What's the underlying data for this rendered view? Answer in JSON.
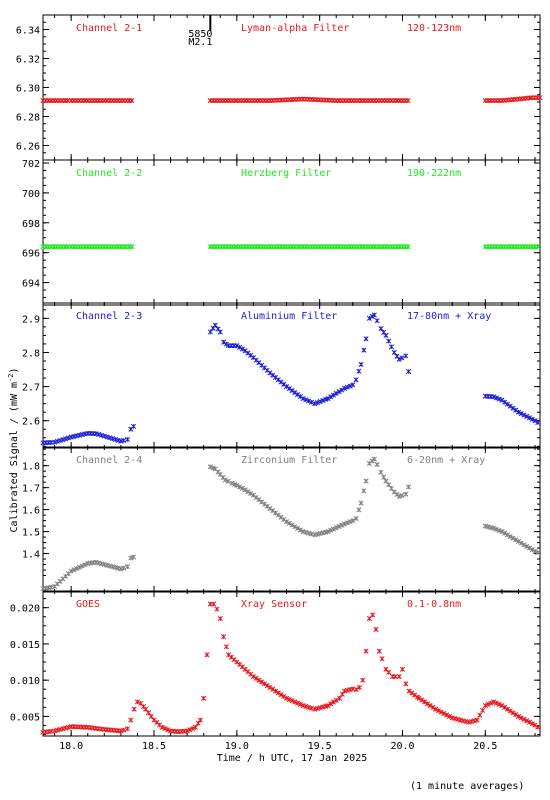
{
  "chart_data": {
    "type": "scatter",
    "xlabel": "Time / h UTC, 17 Jan 2025",
    "ylabel": "Calibrated Signal / (mW m",
    "ylabel_sup": "-2",
    "ylabel_end": ")",
    "xlim": [
      17.83,
      20.83
    ],
    "x_ticks": [
      "18.0",
      "18.5",
      "19.0",
      "19.5",
      "20.0",
      "20.5"
    ],
    "x_tick_values": [
      18.0,
      18.5,
      19.0,
      19.5,
      20.0,
      20.5
    ],
    "footnote": "(1 minute averages)",
    "event_marker": {
      "x": 18.84,
      "line1": "5850",
      "line2": "M2.1"
    },
    "panels": [
      {
        "channel": "Channel 2-1",
        "filter": "Lyman-alpha Filter",
        "band": "120-123nm",
        "color": "#e8191e",
        "ylim": [
          6.25,
          6.35
        ],
        "y_ticks": [
          "6.26",
          "6.28",
          "6.30",
          "6.32",
          "6.34"
        ],
        "y_tick_values": [
          6.26,
          6.28,
          6.3,
          6.32,
          6.34
        ],
        "segments": [
          {
            "x": [
              17.83,
              18.0,
              18.2,
              18.38
            ],
            "y": [
              6.291,
              6.291,
              6.291,
              6.291
            ]
          },
          {
            "x": [
              18.84,
              19.0,
              19.2,
              19.4,
              19.6,
              19.8,
              20.04
            ],
            "y": [
              6.291,
              6.291,
              6.291,
              6.292,
              6.291,
              6.291,
              6.291
            ]
          },
          {
            "x": [
              20.5,
              20.6,
              20.7,
              20.78,
              20.83
            ],
            "y": [
              6.291,
              6.291,
              6.292,
              6.293,
              6.293
            ]
          }
        ]
      },
      {
        "channel": "Channel 2-2",
        "filter": "Herzberg Filter",
        "band": "190-222nm",
        "color": "#1ee81e",
        "ylim": [
          692.5,
          702.2
        ],
        "y_ticks": [
          "694",
          "696",
          "698",
          "700",
          "702"
        ],
        "y_tick_values": [
          694,
          696,
          698,
          700,
          702
        ],
        "segments": [
          {
            "x": [
              17.83,
              18.0,
              18.2,
              18.38
            ],
            "y": [
              696.4,
              696.4,
              696.4,
              696.4
            ]
          },
          {
            "x": [
              18.84,
              19.0,
              19.2,
              19.4,
              19.6,
              19.8,
              20.04
            ],
            "y": [
              696.4,
              696.4,
              696.4,
              696.4,
              696.4,
              696.4,
              696.4
            ]
          },
          {
            "x": [
              20.5,
              20.65,
              20.83
            ],
            "y": [
              696.4,
              696.4,
              696.4
            ]
          }
        ]
      },
      {
        "channel": "Channel 2-3",
        "filter": "Aluminium Filter",
        "band": "17-80nm + Xray",
        "color": "#1e1ed2",
        "ylim": [
          2.52,
          2.945
        ],
        "y_ticks": [
          "2.6",
          "2.7",
          "2.8",
          "2.9"
        ],
        "y_tick_values": [
          2.6,
          2.7,
          2.8,
          2.9
        ],
        "segments": [
          {
            "x": [
              17.83,
              17.9,
              18.0,
              18.1,
              18.15,
              18.2,
              18.3,
              18.34,
              18.36,
              18.38
            ],
            "y": [
              2.535,
              2.537,
              2.552,
              2.563,
              2.562,
              2.555,
              2.54,
              2.545,
              2.575,
              2.585
            ]
          },
          {
            "x": [
              18.84,
              18.87,
              18.9,
              18.92,
              18.95,
              19.0,
              19.05,
              19.1,
              19.2,
              19.3,
              19.4,
              19.47,
              19.55,
              19.65,
              19.7,
              19.72,
              19.75,
              19.78,
              19.8,
              19.83,
              19.87,
              19.9,
              19.95,
              19.98,
              20.02,
              20.04
            ],
            "y": [
              2.86,
              2.88,
              2.86,
              2.83,
              2.82,
              2.82,
              2.805,
              2.785,
              2.74,
              2.7,
              2.665,
              2.65,
              2.665,
              2.695,
              2.705,
              2.72,
              2.765,
              2.84,
              2.9,
              2.91,
              2.87,
              2.85,
              2.8,
              2.78,
              2.79,
              2.735
            ]
          },
          {
            "x": [
              20.5,
              20.55,
              20.6,
              20.7,
              20.8,
              20.83
            ],
            "y": [
              2.672,
              2.67,
              2.66,
              2.625,
              2.6,
              2.59
            ]
          }
        ]
      },
      {
        "channel": "Channel 2-4",
        "filter": "Zirconium Filter",
        "band": "6-20nm + Xray",
        "color": "#808080",
        "ylim": [
          1.225,
          1.885
        ],
        "y_ticks": [
          "1.4",
          "1.5",
          "1.6",
          "1.7",
          "1.8"
        ],
        "y_tick_values": [
          1.4,
          1.5,
          1.6,
          1.7,
          1.8
        ],
        "segments": [
          {
            "x": [
              17.83,
              17.9,
              18.0,
              18.1,
              18.15,
              18.2,
              18.3,
              18.34,
              18.36,
              18.38
            ],
            "y": [
              1.24,
              1.25,
              1.32,
              1.355,
              1.36,
              1.35,
              1.33,
              1.34,
              1.38,
              1.385
            ]
          },
          {
            "x": [
              18.84,
              18.87,
              18.9,
              18.93,
              18.97,
              19.0,
              19.05,
              19.1,
              19.2,
              19.3,
              19.4,
              19.47,
              19.55,
              19.65,
              19.7,
              19.72,
              19.75,
              19.78,
              19.8,
              19.83,
              19.87,
              19.9,
              19.95,
              19.98,
              20.02,
              20.04
            ],
            "y": [
              1.795,
              1.785,
              1.76,
              1.735,
              1.72,
              1.71,
              1.69,
              1.665,
              1.605,
              1.545,
              1.5,
              1.485,
              1.5,
              1.535,
              1.55,
              1.56,
              1.63,
              1.73,
              1.81,
              1.83,
              1.77,
              1.73,
              1.68,
              1.66,
              1.67,
              1.71
            ]
          },
          {
            "x": [
              20.5,
              20.55,
              20.6,
              20.7,
              20.8,
              20.83
            ],
            "y": [
              1.525,
              1.515,
              1.5,
              1.455,
              1.41,
              1.4
            ]
          }
        ]
      },
      {
        "channel": "GOES",
        "filter": "Xray Sensor",
        "band": "0.1-0.8nm",
        "color": "#e8191e",
        "ylim": [
          0.0023,
          0.0223
        ],
        "y_ticks": [
          "0.005",
          "0.010",
          "0.015",
          "0.020"
        ],
        "y_tick_values": [
          0.005,
          0.01,
          0.015,
          0.02
        ],
        "segments": [
          {
            "x": [
              17.83,
              17.9,
              18.0,
              18.1,
              18.2,
              18.3,
              18.34,
              18.36,
              18.38,
              18.4,
              18.42,
              18.45,
              18.5,
              18.55,
              18.6,
              18.65,
              18.7,
              18.75,
              18.78,
              18.8,
              18.82,
              18.84,
              18.86,
              18.88,
              18.9,
              18.92,
              18.95,
              19.0,
              19.05,
              19.1,
              19.2,
              19.3,
              19.4,
              19.47,
              19.55,
              19.62,
              19.65,
              19.7,
              19.72,
              19.74,
              19.76,
              19.78,
              19.8,
              19.82,
              19.84,
              19.86,
              19.9,
              19.94,
              19.98,
              20.0,
              20.02,
              20.04,
              20.1,
              20.2,
              20.3,
              20.4,
              20.45,
              20.5,
              20.55,
              20.6,
              20.7,
              20.8,
              20.83
            ],
            "y": [
              0.0028,
              0.003,
              0.0036,
              0.0035,
              0.0032,
              0.003,
              0.0033,
              0.0045,
              0.006,
              0.007,
              0.0068,
              0.006,
              0.0045,
              0.0035,
              0.003,
              0.0029,
              0.003,
              0.0035,
              0.0045,
              0.0075,
              0.0135,
              0.0205,
              0.0205,
              0.0198,
              0.0185,
              0.016,
              0.0135,
              0.0125,
              0.0115,
              0.0105,
              0.009,
              0.0075,
              0.0065,
              0.006,
              0.0065,
              0.0075,
              0.0085,
              0.0088,
              0.0087,
              0.009,
              0.01,
              0.014,
              0.0185,
              0.019,
              0.017,
              0.014,
              0.0115,
              0.0105,
              0.0105,
              0.0115,
              0.0095,
              0.0085,
              0.0075,
              0.006,
              0.0048,
              0.0042,
              0.0045,
              0.0065,
              0.007,
              0.0065,
              0.005,
              0.0038,
              0.0033
            ]
          }
        ]
      }
    ]
  }
}
